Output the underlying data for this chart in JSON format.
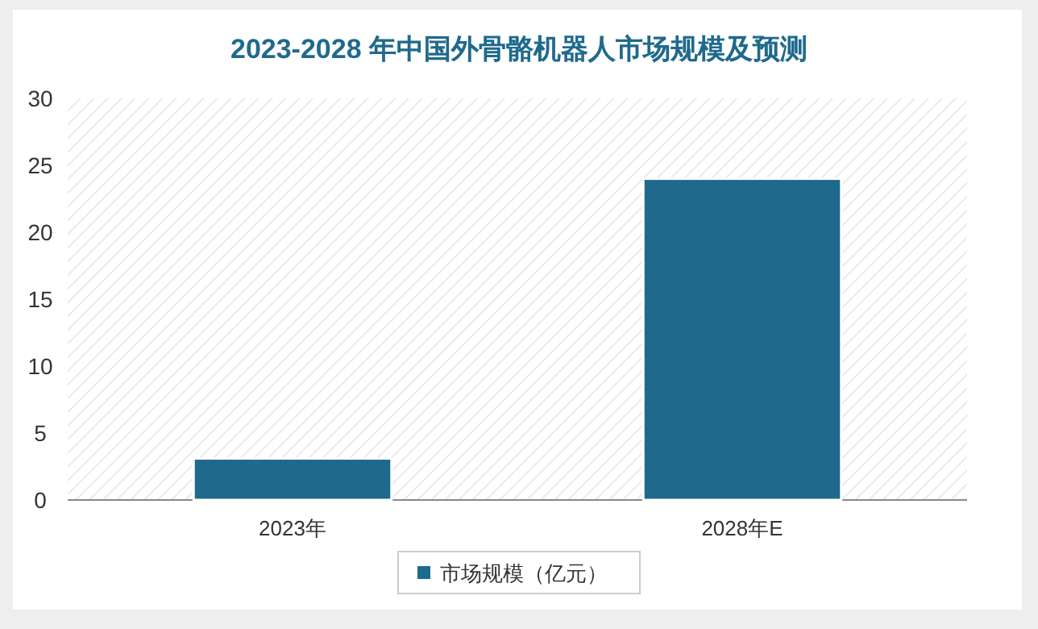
{
  "chart_data": {
    "type": "bar",
    "title": "2023-2028 年中国外骨骼机器人市场规模及预测",
    "categories": [
      "2023年",
      "2028年E"
    ],
    "series": [
      {
        "name": "市场规模（亿元）",
        "color": "#1f6a8c",
        "values": [
          3.1,
          24.0
        ]
      }
    ],
    "ylim": [
      0,
      30
    ],
    "yticks": [
      0,
      5,
      10,
      15,
      20,
      25,
      30
    ],
    "grid": false,
    "legend": "bottom"
  }
}
